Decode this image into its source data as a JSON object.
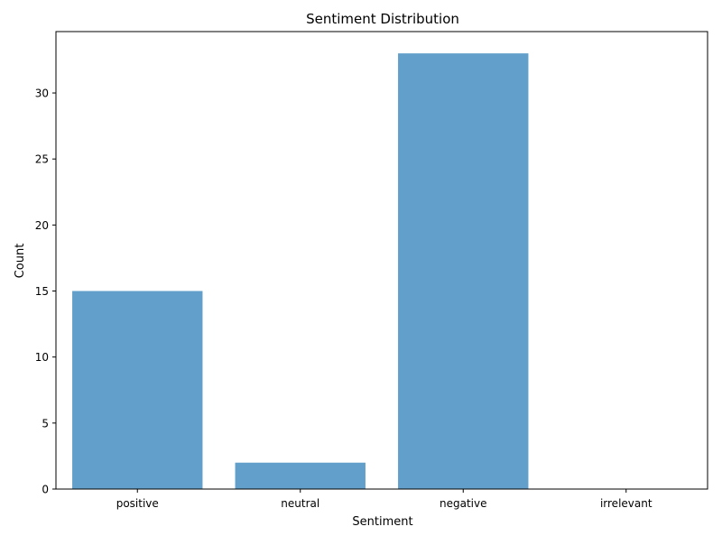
{
  "chart_data": {
    "type": "bar",
    "title": "Sentiment Distribution",
    "xlabel": "Sentiment",
    "ylabel": "Count",
    "categories": [
      "positive",
      "neutral",
      "negative",
      "irrelevant"
    ],
    "values": [
      15,
      2,
      33,
      0
    ],
    "ylim": [
      0,
      34.65
    ],
    "yticks": [
      0,
      5,
      10,
      15,
      20,
      25,
      30
    ],
    "bar_color": "#62a0cb",
    "grid": false,
    "legend": "none"
  }
}
